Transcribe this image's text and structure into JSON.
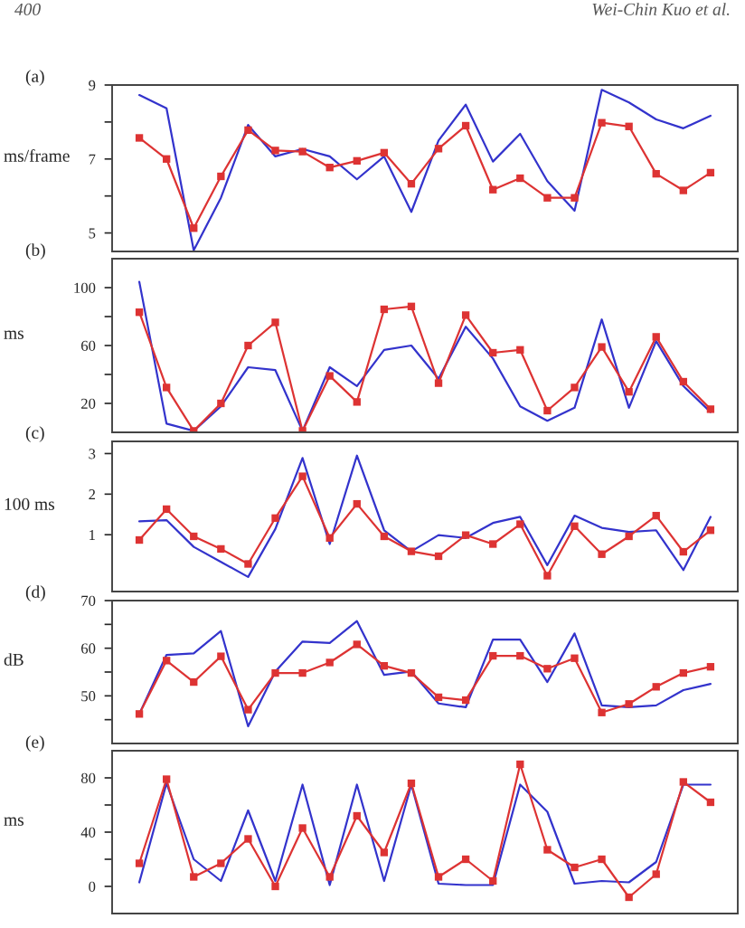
{
  "chart_data": [
    {
      "type": "line",
      "title": "(a)",
      "ylabel": "ms/frame",
      "annotations": [
        "400",
        "Wei-Chin Kuo et al."
      ],
      "categories": [
        null,
        null,
        null,
        null,
        null,
        null,
        null,
        null,
        null,
        null,
        null,
        null,
        null,
        null,
        null,
        null,
        null,
        null,
        null,
        null,
        null,
        null
      ],
      "ylim": [
        4.5,
        9
      ],
      "yticks": [
        5,
        {
          "value": 6,
          "label": null
        },
        7,
        {
          "value": 8,
          "label": null
        },
        9
      ],
      "tick_labels": "y",
      "grid": false,
      "series": [
        {
          "color": "#3333cc",
          "marker": "none",
          "values": [
            8.73,
            8.37,
            4.53,
            5.95,
            7.92,
            7.07,
            7.27,
            7.07,
            6.45,
            7.07,
            5.57,
            7.5,
            8.47,
            6.93,
            7.68,
            6.4,
            5.6,
            8.87,
            8.53,
            8.07,
            7.83,
            8.17
          ]
        },
        {
          "color": "#dd3333",
          "marker": "square",
          "values": [
            7.57,
            7.0,
            5.13,
            6.53,
            7.78,
            7.23,
            7.2,
            6.77,
            6.95,
            7.17,
            6.33,
            7.28,
            7.9,
            6.17,
            6.48,
            5.95,
            5.95,
            7.98,
            7.88,
            6.6,
            6.15,
            6.63
          ]
        }
      ]
    },
    {
      "type": "line",
      "title": "(b)",
      "ylabel": "ms",
      "categories": [
        null,
        null,
        null,
        null,
        null,
        null,
        null,
        null,
        null,
        null,
        null,
        null,
        null,
        null,
        null,
        null,
        null,
        null,
        null,
        null,
        null,
        null
      ],
      "ylim": [
        0,
        120
      ],
      "yticks": [
        20,
        {
          "value": 40,
          "label": null
        },
        60,
        {
          "value": 80,
          "label": null
        },
        100
      ],
      "tick_labels": "y",
      "grid": false,
      "series": [
        {
          "color": "#3333cc",
          "marker": "none",
          "values": [
            104,
            6,
            1,
            18,
            45,
            43,
            1,
            45,
            32,
            57,
            60,
            37,
            73,
            51,
            18,
            8,
            17,
            78,
            17,
            63,
            32,
            14
          ]
        },
        {
          "color": "#dd3333",
          "marker": "square",
          "values": [
            83,
            31,
            1,
            20,
            60,
            76,
            1,
            39,
            21,
            85,
            87,
            34,
            81,
            55,
            57,
            15,
            31,
            59,
            28,
            66,
            35,
            16
          ]
        }
      ]
    },
    {
      "type": "line",
      "title": "(c)",
      "ylabel": "100 ms",
      "categories": [
        null,
        null,
        null,
        null,
        null,
        null,
        null,
        null,
        null,
        null,
        null,
        null,
        null,
        null,
        null,
        null,
        null,
        null,
        null,
        null,
        null,
        null
      ],
      "ylim": [
        -0.4,
        3.3
      ],
      "yticks": [
        1,
        2,
        3
      ],
      "tick_labels": "y",
      "grid": false,
      "series": [
        {
          "color": "#3333cc",
          "marker": "none",
          "values": [
            1.33,
            1.36,
            0.7,
            0.33,
            -0.04,
            1.14,
            2.89,
            0.77,
            2.95,
            1.11,
            0.59,
            0.99,
            0.92,
            1.29,
            1.44,
            0.25,
            1.47,
            1.17,
            1.07,
            1.11,
            0.13,
            1.44
          ]
        },
        {
          "color": "#dd3333",
          "marker": "square",
          "values": [
            0.87,
            1.63,
            0.96,
            0.65,
            0.28,
            1.41,
            2.44,
            0.92,
            1.76,
            0.96,
            0.59,
            0.47,
            0.99,
            0.77,
            1.26,
            -0.01,
            1.21,
            0.52,
            0.96,
            1.47,
            0.58,
            1.11
          ]
        }
      ]
    },
    {
      "type": "line",
      "title": "(d)",
      "ylabel": "dB",
      "categories": [
        null,
        null,
        null,
        null,
        null,
        null,
        null,
        null,
        null,
        null,
        null,
        null,
        null,
        null,
        null,
        null,
        null,
        null,
        null,
        null,
        null,
        null
      ],
      "ylim": [
        40,
        70
      ],
      "yticks": [
        {
          "value": 45,
          "label": null
        },
        50,
        {
          "value": 55,
          "label": null
        },
        60,
        {
          "value": 65,
          "label": null
        },
        70
      ],
      "tick_labels": "y",
      "grid": false,
      "series": [
        {
          "color": "#3333cc",
          "marker": "none",
          "values": [
            46.2,
            58.6,
            58.9,
            63.6,
            43.6,
            55.1,
            61.4,
            61.1,
            65.7,
            54.4,
            55.1,
            48.4,
            47.6,
            61.8,
            61.8,
            52.9,
            63.1,
            48.0,
            47.6,
            48.0,
            51.2,
            52.5
          ]
        },
        {
          "color": "#dd3333",
          "marker": "square",
          "values": [
            46.2,
            57.4,
            52.9,
            58.3,
            47.1,
            54.8,
            54.8,
            57.0,
            60.8,
            56.3,
            54.8,
            49.7,
            49.1,
            58.4,
            58.4,
            55.7,
            57.9,
            46.5,
            48.3,
            51.9,
            54.8,
            56.1
          ]
        }
      ]
    },
    {
      "type": "line",
      "title": "(e)",
      "ylabel": "ms",
      "categories": [
        null,
        null,
        null,
        null,
        null,
        null,
        null,
        null,
        null,
        null,
        null,
        null,
        null,
        null,
        null,
        null,
        null,
        null,
        null,
        null,
        null,
        null
      ],
      "ylim": [
        -20,
        100
      ],
      "yticks": [
        0,
        {
          "value": 20,
          "label": null
        },
        40,
        {
          "value": 60,
          "label": null
        },
        80
      ],
      "tick_labels": "y",
      "grid": false,
      "series": [
        {
          "color": "#3333cc",
          "marker": "none",
          "values": [
            3,
            76,
            20,
            4,
            56,
            4,
            75,
            1,
            75,
            4,
            75,
            2,
            1,
            1,
            75,
            55,
            2,
            4,
            3,
            18,
            75,
            75
          ]
        },
        {
          "color": "#dd3333",
          "marker": "square",
          "values": [
            17,
            79,
            7,
            17,
            35,
            0,
            43,
            7,
            52,
            25,
            76,
            7,
            20,
            4,
            90,
            27,
            14,
            20,
            -8,
            9,
            77,
            62
          ]
        }
      ]
    }
  ]
}
